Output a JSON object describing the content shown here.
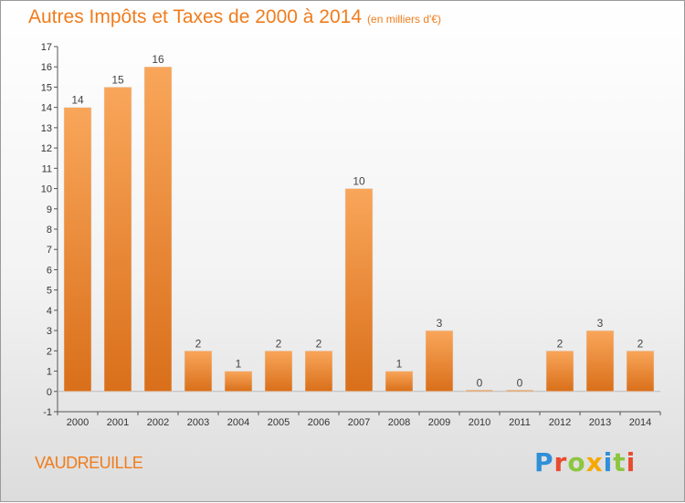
{
  "chart_data": {
    "type": "bar",
    "title": "Autres Impôts et Taxes de 2000 à 2014",
    "subtitle": "(en milliers d'€)",
    "categories": [
      "2000",
      "2001",
      "2002",
      "2003",
      "2004",
      "2005",
      "2006",
      "2007",
      "2008",
      "2009",
      "2010",
      "2011",
      "2012",
      "2013",
      "2014"
    ],
    "values": [
      14,
      15,
      16,
      2,
      1,
      2,
      2,
      10,
      1,
      3,
      0,
      0,
      2,
      3,
      2
    ],
    "data_labels": [
      "14",
      "15",
      "16",
      "2",
      "1",
      "2",
      "2",
      "10",
      "1",
      "3",
      "0",
      "0",
      "2",
      "3",
      "2"
    ],
    "yticks": [
      "-1",
      "0",
      "1",
      "2",
      "3",
      "4",
      "5",
      "6",
      "7",
      "8",
      "9",
      "10",
      "11",
      "12",
      "13",
      "14",
      "15",
      "16",
      "17"
    ],
    "ylim": [
      -1,
      17
    ],
    "grid": false,
    "colors": {
      "bar_top": "#f9a65a",
      "bar_bottom": "#d96f1a",
      "accent": "#f07c1c"
    }
  },
  "footer": {
    "commune": "VAUDREUILLE",
    "logo_letters": [
      {
        "char": "P",
        "color": "#2f8fd8"
      },
      {
        "char": "r",
        "color": "#e84b2f"
      },
      {
        "char": "o",
        "color": "#8cc63f"
      },
      {
        "char": "x",
        "color": "#f7a800"
      },
      {
        "char": "i",
        "color": "#2f8fd8"
      },
      {
        "char": "t",
        "color": "#8cc63f"
      },
      {
        "char": "i",
        "color": "#e84b2f"
      }
    ]
  }
}
